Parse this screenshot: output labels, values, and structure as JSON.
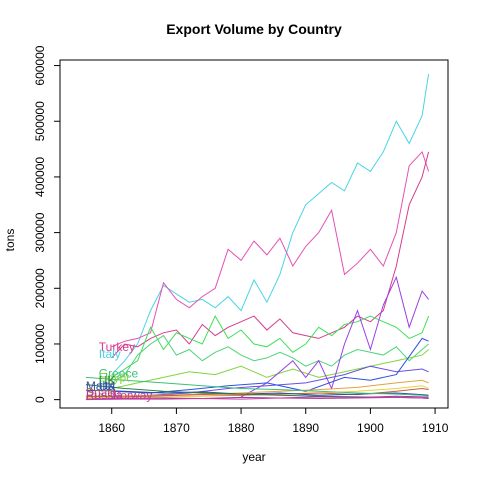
{
  "chart_data": {
    "type": "line",
    "title": "Export Volume by Country",
    "xlabel": "year",
    "ylabel": "tons",
    "xlim": [
      1852,
      1912
    ],
    "ylim": [
      -15000,
      610000
    ],
    "xticks": [
      1860,
      1870,
      1880,
      1890,
      1900,
      1910
    ],
    "yticks": [
      0,
      100000,
      200000,
      300000,
      400000,
      500000,
      600000
    ],
    "grid": false,
    "legend": "none",
    "label_texts": [
      {
        "text": "Turkey",
        "x": 1858,
        "y": 87000,
        "color": "#d63c8c"
      },
      {
        "text": "Italy",
        "x": 1858,
        "y": 75000,
        "color": "#48d4e6"
      },
      {
        "text": "Greece",
        "x": 1858,
        "y": 40000,
        "color": "#3dbf76"
      },
      {
        "text": "Egypt",
        "x": 1858,
        "y": 33000,
        "color": "#7fd63c"
      },
      {
        "text": "UK",
        "x": 1858,
        "y": 27000,
        "color": "#2a7d46"
      },
      {
        "text": "Malta",
        "x": 1856,
        "y": 17000,
        "color": "#2a4f9e"
      },
      {
        "text": "UK",
        "x": 1858,
        "y": 16000,
        "color": "#3050b0"
      },
      {
        "text": "Spain",
        "x": 1856,
        "y": 6000,
        "color": "#cc5a44"
      },
      {
        "text": "Russia",
        "x": 1856,
        "y": 1000,
        "color": "#a03da3"
      },
      {
        "text": "Norway",
        "x": 1860,
        "y": 0,
        "color": "#c43da0"
      }
    ],
    "series": [
      {
        "color": "#48d4e6",
        "x": [
          1860,
          1862,
          1864,
          1866,
          1868,
          1870,
          1872,
          1874,
          1876,
          1878,
          1880,
          1882,
          1884,
          1886,
          1888,
          1890,
          1892,
          1894,
          1896,
          1898,
          1900,
          1902,
          1904,
          1906,
          1908,
          1909
        ],
        "values": [
          45000,
          70000,
          100000,
          160000,
          205000,
          190000,
          175000,
          180000,
          165000,
          185000,
          160000,
          215000,
          175000,
          225000,
          300000,
          350000,
          370000,
          390000,
          375000,
          425000,
          410000,
          445000,
          500000,
          460000,
          510000,
          585000
        ]
      },
      {
        "color": "#e64fb4",
        "x": [
          1860,
          1862,
          1864,
          1866,
          1868,
          1870,
          1872,
          1874,
          1876,
          1878,
          1880,
          1882,
          1884,
          1886,
          1888,
          1890,
          1892,
          1894,
          1896,
          1898,
          1900,
          1902,
          1904,
          1906,
          1908,
          1909
        ],
        "values": [
          95000,
          105000,
          110000,
          120000,
          210000,
          180000,
          165000,
          185000,
          200000,
          270000,
          250000,
          285000,
          260000,
          290000,
          240000,
          275000,
          300000,
          340000,
          225000,
          245000,
          270000,
          240000,
          300000,
          420000,
          445000,
          410000
        ]
      },
      {
        "color": "#d63c8c",
        "x": [
          1860,
          1862,
          1864,
          1866,
          1868,
          1870,
          1872,
          1874,
          1876,
          1878,
          1880,
          1882,
          1884,
          1886,
          1888,
          1890,
          1892,
          1894,
          1896,
          1898,
          1900,
          1902,
          1904,
          1906,
          1908,
          1909
        ],
        "values": [
          75000,
          100000,
          95000,
          110000,
          120000,
          125000,
          100000,
          135000,
          115000,
          130000,
          140000,
          150000,
          125000,
          145000,
          120000,
          115000,
          110000,
          120000,
          130000,
          150000,
          140000,
          160000,
          240000,
          350000,
          400000,
          445000
        ]
      },
      {
        "color": "#3ee05a",
        "x": [
          1860,
          1862,
          1864,
          1866,
          1868,
          1870,
          1872,
          1874,
          1876,
          1878,
          1880,
          1882,
          1884,
          1886,
          1888,
          1890,
          1892,
          1894,
          1896,
          1898,
          1900,
          1902,
          1904,
          1906,
          1908,
          1909
        ],
        "values": [
          40000,
          55000,
          70000,
          130000,
          90000,
          120000,
          110000,
          100000,
          150000,
          110000,
          125000,
          100000,
          95000,
          110000,
          85000,
          100000,
          130000,
          115000,
          135000,
          140000,
          150000,
          140000,
          130000,
          110000,
          120000,
          150000
        ]
      },
      {
        "color": "#4dd47a",
        "x": [
          1860,
          1862,
          1864,
          1866,
          1868,
          1870,
          1872,
          1874,
          1876,
          1878,
          1880,
          1882,
          1884,
          1886,
          1888,
          1890,
          1892,
          1894,
          1896,
          1898,
          1900,
          1902,
          1904,
          1906,
          1908,
          1909
        ],
        "values": [
          30000,
          45000,
          80000,
          100000,
          115000,
          80000,
          90000,
          70000,
          85000,
          95000,
          80000,
          70000,
          75000,
          85000,
          75000,
          60000,
          70000,
          60000,
          80000,
          90000,
          85000,
          80000,
          95000,
          70000,
          90000,
          100000
        ]
      },
      {
        "color": "#7fd63c",
        "x": [
          1860,
          1864,
          1868,
          1872,
          1876,
          1880,
          1884,
          1888,
          1892,
          1896,
          1900,
          1904,
          1908,
          1909
        ],
        "values": [
          20000,
          30000,
          40000,
          50000,
          45000,
          60000,
          40000,
          55000,
          40000,
          50000,
          60000,
          70000,
          80000,
          90000
        ]
      },
      {
        "color": "#9b3de6",
        "x": [
          1880,
          1884,
          1888,
          1890,
          1892,
          1894,
          1896,
          1898,
          1900,
          1902,
          1904,
          1906,
          1908,
          1909
        ],
        "values": [
          5000,
          30000,
          70000,
          40000,
          70000,
          20000,
          100000,
          160000,
          90000,
          170000,
          220000,
          130000,
          195000,
          180000
        ]
      },
      {
        "color": "#6a4de6",
        "x": [
          1860,
          1866,
          1872,
          1878,
          1884,
          1890,
          1896,
          1900,
          1904,
          1908,
          1909
        ],
        "values": [
          3000,
          8000,
          12000,
          20000,
          25000,
          30000,
          45000,
          60000,
          50000,
          55000,
          50000
        ]
      },
      {
        "color": "#3050e6",
        "x": [
          1860,
          1866,
          1872,
          1878,
          1884,
          1890,
          1896,
          1900,
          1904,
          1908,
          1909
        ],
        "values": [
          15000,
          12000,
          18000,
          25000,
          30000,
          15000,
          40000,
          35000,
          45000,
          110000,
          105000
        ]
      },
      {
        "color": "#e6a03c",
        "x": [
          1856,
          1862,
          1868,
          1874,
          1880,
          1886,
          1892,
          1898,
          1904,
          1908,
          1909
        ],
        "values": [
          5000,
          7000,
          8000,
          10000,
          12000,
          15000,
          18000,
          22000,
          30000,
          35000,
          30000
        ]
      },
      {
        "color": "#e6d43c",
        "x": [
          1856,
          1862,
          1868,
          1874,
          1880,
          1886,
          1892,
          1898,
          1904,
          1908,
          1909
        ],
        "values": [
          3000,
          4000,
          5000,
          6000,
          8000,
          10000,
          12000,
          15000,
          20000,
          25000,
          20000
        ]
      },
      {
        "color": "#cc5a44",
        "x": [
          1856,
          1862,
          1868,
          1874,
          1880,
          1886,
          1892,
          1898,
          1904,
          1908,
          1909
        ],
        "values": [
          6000,
          5000,
          7000,
          9000,
          8000,
          10000,
          12000,
          9000,
          15000,
          20000,
          18000
        ]
      },
      {
        "color": "#2a4f9e",
        "x": [
          1856,
          1862,
          1868,
          1874,
          1880,
          1886,
          1892,
          1898,
          1904,
          1908,
          1909
        ],
        "values": [
          17000,
          15000,
          12000,
          14000,
          10000,
          12000,
          8000,
          10000,
          12000,
          9000,
          8000
        ]
      },
      {
        "color": "#2a7d46",
        "x": [
          1856,
          1862,
          1868,
          1874,
          1880,
          1886,
          1892,
          1898,
          1904,
          1908,
          1909
        ],
        "values": [
          27000,
          20000,
          15000,
          12000,
          10000,
          8000,
          6000,
          5000,
          4000,
          3000,
          2000
        ]
      },
      {
        "color": "#3dbf76",
        "x": [
          1856,
          1862,
          1868,
          1874,
          1880,
          1886,
          1892,
          1898,
          1904,
          1908,
          1909
        ],
        "values": [
          40000,
          35000,
          30000,
          25000,
          20000,
          18000,
          15000,
          12000,
          10000,
          8000,
          6000
        ]
      },
      {
        "color": "#a03da3",
        "x": [
          1856,
          1862,
          1868,
          1874,
          1880,
          1886,
          1892,
          1898,
          1904,
          1908,
          1909
        ],
        "values": [
          1000,
          2000,
          3000,
          2000,
          4000,
          3000,
          5000,
          4000,
          6000,
          5000,
          4000
        ]
      },
      {
        "color": "#c43da0",
        "x": [
          1856,
          1862,
          1868,
          1874,
          1880,
          1886,
          1892,
          1898,
          1904,
          1908,
          1909
        ],
        "values": [
          0,
          1000,
          1000,
          2000,
          1000,
          3000,
          2000,
          3000,
          4000,
          3000,
          2000
        ]
      }
    ]
  }
}
